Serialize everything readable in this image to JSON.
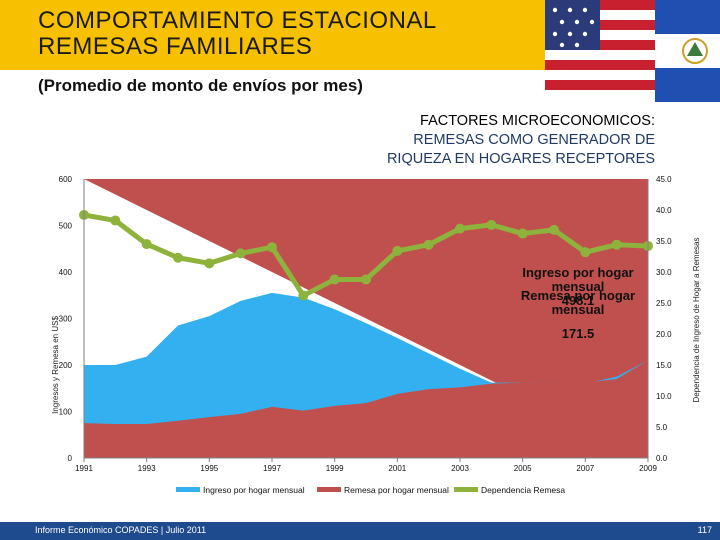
{
  "header": {
    "title_line1": "COMPORTAMIENTO ESTACIONAL",
    "title_line2": "REMESAS FAMILIARES",
    "subtitle": "(Promedio de monto de envíos por mes)"
  },
  "section": {
    "line1": "FACTORES MICROECONOMICOS:",
    "line2": "REMESAS COMO GENERADOR DE",
    "line3": "RIQUEZA EN HOGARES RECEPTORES"
  },
  "footer": {
    "left": "Informe Económico COPADES | Julio 2011",
    "page": "117"
  },
  "colors": {
    "title_band": "#f7c000",
    "ingreso": "#33b0f0",
    "remesa": "#c0504d",
    "dependencia": "#8db33c",
    "footer": "#1e4a8e"
  },
  "chart_data": {
    "type": "area",
    "x": [
      1991,
      1992,
      1993,
      1994,
      1995,
      1996,
      1997,
      1998,
      1999,
      2000,
      2001,
      2002,
      2003,
      2004,
      2005,
      2006,
      2007,
      2008,
      2009
    ],
    "x_ticks": [
      "1991",
      "1993",
      "1995",
      "1997",
      "1999",
      "2001",
      "2003",
      "2005",
      "2007",
      "2009"
    ],
    "y_left_ticks": [
      "0",
      "100",
      "200",
      "300",
      "400",
      "500",
      "600"
    ],
    "y_right_ticks": [
      "0.0",
      "5.0",
      "10.0",
      "15.0",
      "20.0",
      "25.0",
      "30.0",
      "35.0",
      "40.0",
      "45.0"
    ],
    "ylabel_left": "Ingresos y Remesa en US$",
    "ylabel_right": "Dependencia de Ingreso de Hogar a Remesas",
    "ylim_left": [
      0,
      600
    ],
    "ylim_right": [
      0,
      45
    ],
    "series": [
      {
        "name": "Ingreso por hogar mensual",
        "axis": "left",
        "kind": "area",
        "values": [
          200,
          200,
          218,
          285,
          305,
          338,
          355,
          345,
          320,
          290,
          258,
          225,
          192,
          162,
          162,
          165,
          160,
          175,
          210
        ]
      },
      {
        "name": "Remesa por hogar mensual",
        "axis": "left",
        "kind": "area",
        "values": [
          75,
          73,
          73,
          80,
          88,
          95,
          110,
          102,
          112,
          118,
          138,
          148,
          152,
          160,
          162,
          165,
          162,
          170,
          210
        ]
      },
      {
        "name": "Dependencia Remesa",
        "axis": "right",
        "kind": "line",
        "values": [
          39.2,
          38.3,
          34.5,
          32.3,
          31.4,
          33.0,
          34.0,
          26.2,
          28.8,
          28.8,
          33.4,
          34.4,
          37.0,
          37.6,
          36.2,
          36.8,
          33.2,
          34.4,
          34.2
        ]
      }
    ],
    "annotations": [
      {
        "line1": "Ingreso por hogar",
        "line2": "mensual",
        "line3": "498.1"
      },
      {
        "line1": "Remesa por hogar",
        "line2": "mensual",
        "line3": "171.5"
      }
    ],
    "legend_position": "bottom"
  }
}
